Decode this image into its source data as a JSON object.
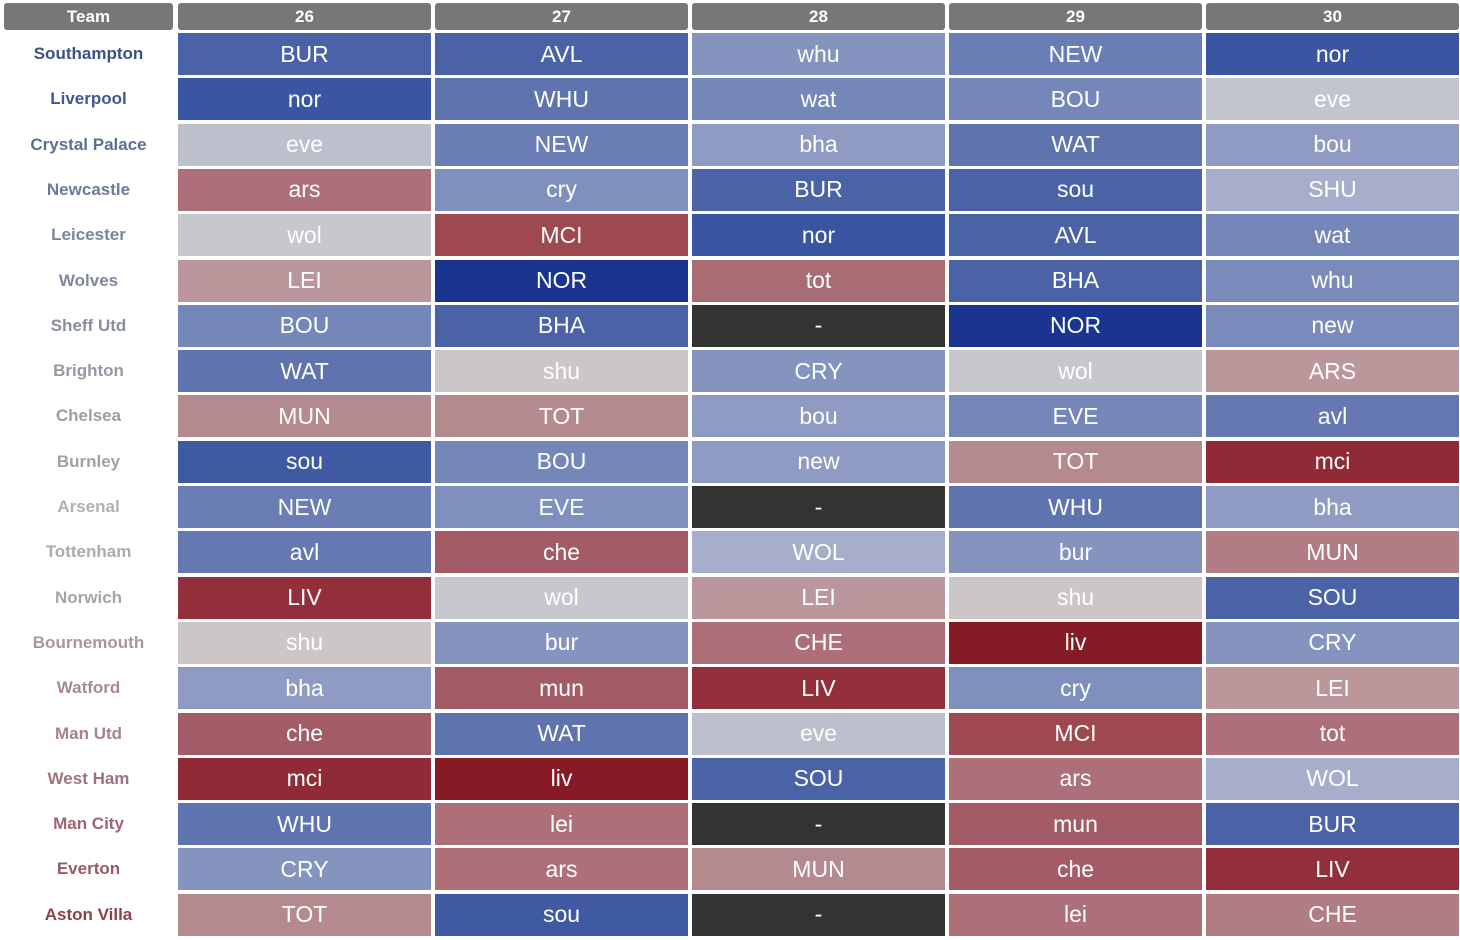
{
  "table": {
    "header": [
      "Team",
      "26",
      "27",
      "28",
      "29",
      "30"
    ],
    "header_color": "#777777",
    "rows": [
      {
        "team": "Southampton",
        "team_color": "#3b5184",
        "cells": [
          {
            "text": "BUR",
            "color": "#4a63a6"
          },
          {
            "text": "AVL",
            "color": "#4a63a6"
          },
          {
            "text": "whu",
            "color": "#8593bf"
          },
          {
            "text": "NEW",
            "color": "#6a7db4"
          },
          {
            "text": "nor",
            "color": "#3a56a3"
          }
        ]
      },
      {
        "team": "Liverpool",
        "team_color": "#40578f",
        "cells": [
          {
            "text": "nor",
            "color": "#3a56a3"
          },
          {
            "text": "WHU",
            "color": "#5f74ae"
          },
          {
            "text": "wat",
            "color": "#7586b8"
          },
          {
            "text": "BOU",
            "color": "#7586b8"
          },
          {
            "text": "eve",
            "color": "#c2c4d0"
          }
        ]
      },
      {
        "team": "Crystal Palace",
        "team_color": "#5e6f95",
        "cells": [
          {
            "text": "eve",
            "color": "#bcbfcc"
          },
          {
            "text": "NEW",
            "color": "#6a7db4"
          },
          {
            "text": "bha",
            "color": "#8f9bc2"
          },
          {
            "text": "WAT",
            "color": "#5f74ae"
          },
          {
            "text": "bou",
            "color": "#8f9bc2"
          }
        ]
      },
      {
        "team": "Newcastle",
        "team_color": "#6c7a99",
        "cells": [
          {
            "text": "ars",
            "color": "#ad7079"
          },
          {
            "text": "cry",
            "color": "#7f90bf"
          },
          {
            "text": "BUR",
            "color": "#4a63a6"
          },
          {
            "text": "sou",
            "color": "#4a63a6"
          },
          {
            "text": "SHU",
            "color": "#a6aecb"
          }
        ]
      },
      {
        "team": "Leicester",
        "team_color": "#7a859c",
        "cells": [
          {
            "text": "wol",
            "color": "#c7c8ce"
          },
          {
            "text": "MCI",
            "color": "#9e4850"
          },
          {
            "text": "nor",
            "color": "#3a56a3"
          },
          {
            "text": "AVL",
            "color": "#4a63a6"
          },
          {
            "text": "wat",
            "color": "#7586b8"
          }
        ]
      },
      {
        "team": "Wolves",
        "team_color": "#7f879b",
        "cells": [
          {
            "text": "LEI",
            "color": "#bb979b"
          },
          {
            "text": "NOR",
            "color": "#1a3590"
          },
          {
            "text": "tot",
            "color": "#a86c73"
          },
          {
            "text": "BHA",
            "color": "#4a63a6"
          },
          {
            "text": "whu",
            "color": "#7a8bbb"
          }
        ]
      },
      {
        "team": "Sheff Utd",
        "team_color": "#8a8f9e",
        "cells": [
          {
            "text": "BOU",
            "color": "#7586b8"
          },
          {
            "text": "BHA",
            "color": "#4a63a6"
          },
          {
            "text": "-",
            "color": "#333333"
          },
          {
            "text": "NOR",
            "color": "#1a3590"
          },
          {
            "text": "new",
            "color": "#7a8bbb"
          }
        ]
      },
      {
        "team": "Brighton",
        "team_color": "#9599a3",
        "cells": [
          {
            "text": "WAT",
            "color": "#5f74ae"
          },
          {
            "text": "shu",
            "color": "#ccc6c8"
          },
          {
            "text": "CRY",
            "color": "#8593bf"
          },
          {
            "text": "wol",
            "color": "#c7c8ce"
          },
          {
            "text": "ARS",
            "color": "#bb979b"
          }
        ]
      },
      {
        "team": "Chelsea",
        "team_color": "#9a9ea6",
        "cells": [
          {
            "text": "MUN",
            "color": "#b48a8f"
          },
          {
            "text": "TOT",
            "color": "#b48a8f"
          },
          {
            "text": "bou",
            "color": "#8f9bc2"
          },
          {
            "text": "EVE",
            "color": "#7586b8"
          },
          {
            "text": "avl",
            "color": "#6578b1"
          }
        ]
      },
      {
        "team": "Burnley",
        "team_color": "#a0a2a8",
        "cells": [
          {
            "text": "sou",
            "color": "#3f5aa3"
          },
          {
            "text": "BOU",
            "color": "#7586b8"
          },
          {
            "text": "new",
            "color": "#8f9bc2"
          },
          {
            "text": "TOT",
            "color": "#b48a8f"
          },
          {
            "text": "mci",
            "color": "#8f2a36"
          }
        ]
      },
      {
        "team": "Arsenal",
        "team_color": "#b0b0b3",
        "cells": [
          {
            "text": "NEW",
            "color": "#6a7db4"
          },
          {
            "text": "EVE",
            "color": "#7f90bf"
          },
          {
            "text": "-",
            "color": "#333333"
          },
          {
            "text": "WHU",
            "color": "#5f74ae"
          },
          {
            "text": "bha",
            "color": "#8f9bc2"
          }
        ]
      },
      {
        "team": "Tottenham",
        "team_color": "#b0a8aa",
        "cells": [
          {
            "text": "avl",
            "color": "#6578b1"
          },
          {
            "text": "che",
            "color": "#a35c66"
          },
          {
            "text": "WOL",
            "color": "#a6aecb"
          },
          {
            "text": "bur",
            "color": "#8593bf"
          },
          {
            "text": "MUN",
            "color": "#b07d84"
          }
        ]
      },
      {
        "team": "Norwich",
        "team_color": "#a9a2a4",
        "cells": [
          {
            "text": "LIV",
            "color": "#922f3b"
          },
          {
            "text": "wol",
            "color": "#c7c8ce"
          },
          {
            "text": "LEI",
            "color": "#bb979b"
          },
          {
            "text": "shu",
            "color": "#ccc6c8"
          },
          {
            "text": "SOU",
            "color": "#4a63a6"
          }
        ]
      },
      {
        "team": "Bournemouth",
        "team_color": "#a8989b",
        "cells": [
          {
            "text": "shu",
            "color": "#ccc6c8"
          },
          {
            "text": "bur",
            "color": "#8593bf"
          },
          {
            "text": "CHE",
            "color": "#ad7079"
          },
          {
            "text": "liv",
            "color": "#861a25"
          },
          {
            "text": "CRY",
            "color": "#8593bf"
          }
        ]
      },
      {
        "team": "Watford",
        "team_color": "#a88a8f",
        "cells": [
          {
            "text": "bha",
            "color": "#8f9bc2"
          },
          {
            "text": "mun",
            "color": "#a35c66"
          },
          {
            "text": "LIV",
            "color": "#922f3b"
          },
          {
            "text": "cry",
            "color": "#7f90bf"
          },
          {
            "text": "LEI",
            "color": "#bb979b"
          }
        ]
      },
      {
        "team": "Man Utd",
        "team_color": "#a4838a",
        "cells": [
          {
            "text": "che",
            "color": "#a35c66"
          },
          {
            "text": "WAT",
            "color": "#5f74ae"
          },
          {
            "text": "eve",
            "color": "#bcbfcc"
          },
          {
            "text": "MCI",
            "color": "#9e4850"
          },
          {
            "text": "tot",
            "color": "#ad7079"
          }
        ]
      },
      {
        "team": "West Ham",
        "team_color": "#a0737b",
        "cells": [
          {
            "text": "mci",
            "color": "#8f2a36"
          },
          {
            "text": "liv",
            "color": "#861a25"
          },
          {
            "text": "SOU",
            "color": "#4a63a6"
          },
          {
            "text": "ars",
            "color": "#ad7079"
          },
          {
            "text": "WOL",
            "color": "#a6aecb"
          }
        ]
      },
      {
        "team": "Man City",
        "team_color": "#9c6770",
        "cells": [
          {
            "text": "WHU",
            "color": "#5f74ae"
          },
          {
            "text": "lei",
            "color": "#ad7079"
          },
          {
            "text": "-",
            "color": "#333333"
          },
          {
            "text": "mun",
            "color": "#a35c66"
          },
          {
            "text": "BUR",
            "color": "#4a63a6"
          }
        ]
      },
      {
        "team": "Everton",
        "team_color": "#9a5a64",
        "cells": [
          {
            "text": "CRY",
            "color": "#8593bf"
          },
          {
            "text": "ars",
            "color": "#ad7079"
          },
          {
            "text": "MUN",
            "color": "#b48a8f"
          },
          {
            "text": "che",
            "color": "#a35c66"
          },
          {
            "text": "LIV",
            "color": "#922f3b"
          }
        ]
      },
      {
        "team": "Aston Villa",
        "team_color": "#8e3f4a",
        "cells": [
          {
            "text": "TOT",
            "color": "#b48a8f"
          },
          {
            "text": "sou",
            "color": "#3f5aa3"
          },
          {
            "text": "-",
            "color": "#333333"
          },
          {
            "text": "lei",
            "color": "#ad7079"
          },
          {
            "text": "CHE",
            "color": "#b07d84"
          }
        ]
      }
    ]
  }
}
